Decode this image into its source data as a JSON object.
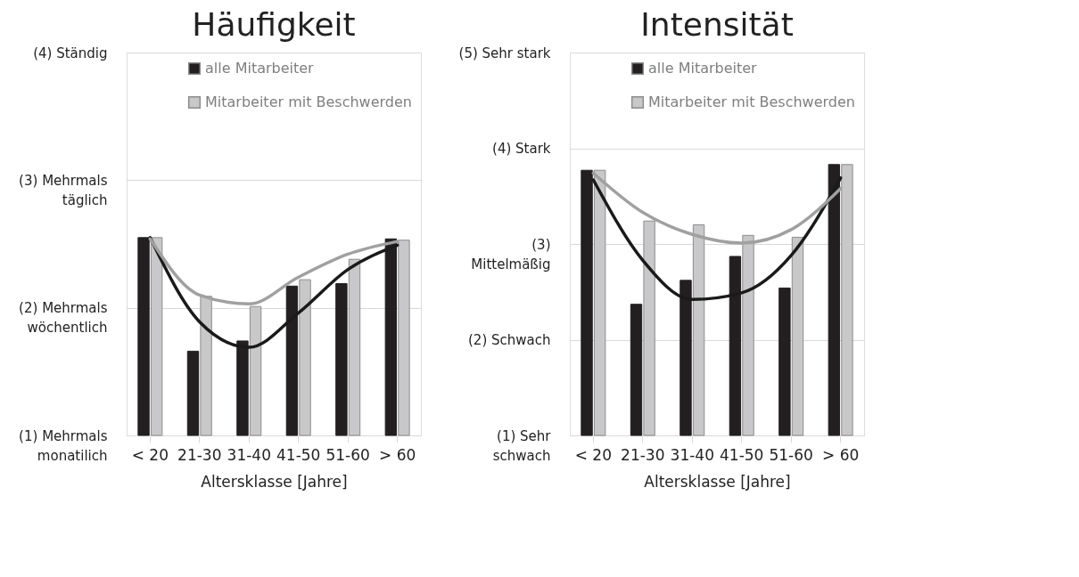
{
  "chart_data": [
    {
      "type": "bar",
      "title": "Häufigkeit",
      "xlabel": "Altersklasse [Jahre]",
      "categories": [
        "< 20",
        "21-30",
        "31-40",
        "41-50",
        "51-60",
        "> 60"
      ],
      "ylim": [
        1,
        4
      ],
      "yticks": [
        {
          "value": 1,
          "label": "(1) Mehrmals\nmonatilich"
        },
        {
          "value": 2,
          "label": "(2) Mehrmals\nwöchentlich"
        },
        {
          "value": 3,
          "label": "(3) Mehrmals\ntäglich"
        },
        {
          "value": 4,
          "label": "(4) Ständig"
        }
      ],
      "grid": "y",
      "legend": "top right",
      "series": [
        {
          "name": "alle Mitarbeiter",
          "color": "#231f20",
          "values": [
            2.55,
            1.66,
            1.74,
            2.17,
            2.19,
            2.54
          ]
        },
        {
          "name": "Mitarbeiter mit Beschwerden",
          "color": "#c8c8ca",
          "values": [
            2.55,
            2.09,
            2.01,
            2.22,
            2.38,
            2.53
          ]
        },
        {
          "type": "line",
          "color": "#1a1a1a",
          "values": [
            2.55,
            1.89,
            1.69,
            1.96,
            2.3,
            2.49
          ]
        },
        {
          "type": "line",
          "color": "#a0a0a0",
          "values": [
            2.54,
            2.1,
            2.03,
            2.24,
            2.42,
            2.52
          ]
        }
      ]
    },
    {
      "type": "bar",
      "title": "Intensität",
      "xlabel": "Altersklasse [Jahre]",
      "categories": [
        "< 20",
        "21-30",
        "31-40",
        "41-50",
        "51-60",
        "> 60"
      ],
      "ylim": [
        1,
        5
      ],
      "yticks": [
        {
          "value": 1,
          "label": "(1) Sehr\nschwach"
        },
        {
          "value": 2,
          "label": "(2) Schwach"
        },
        {
          "value": 3,
          "label": "(3)\nMittelmäßig"
        },
        {
          "value": 4,
          "label": "(4) Stark"
        },
        {
          "value": 5,
          "label": "(5) Sehr stark"
        }
      ],
      "grid": "y",
      "legend": "top right",
      "series": [
        {
          "name": "alle Mitarbeiter",
          "color": "#231f20",
          "values": [
            3.77,
            2.37,
            2.62,
            2.87,
            2.54,
            3.83
          ]
        },
        {
          "name": "Mitarbeiter mit Beschwerden",
          "color": "#c8c8ca",
          "values": [
            3.77,
            3.24,
            3.2,
            3.09,
            3.07,
            3.83
          ]
        },
        {
          "type": "line",
          "color": "#1a1a1a",
          "values": [
            3.67,
            2.83,
            2.42,
            2.49,
            2.88,
            3.69
          ]
        },
        {
          "type": "line",
          "color": "#a0a0a0",
          "values": [
            3.74,
            3.33,
            3.1,
            3.01,
            3.15,
            3.58
          ]
        }
      ]
    }
  ]
}
